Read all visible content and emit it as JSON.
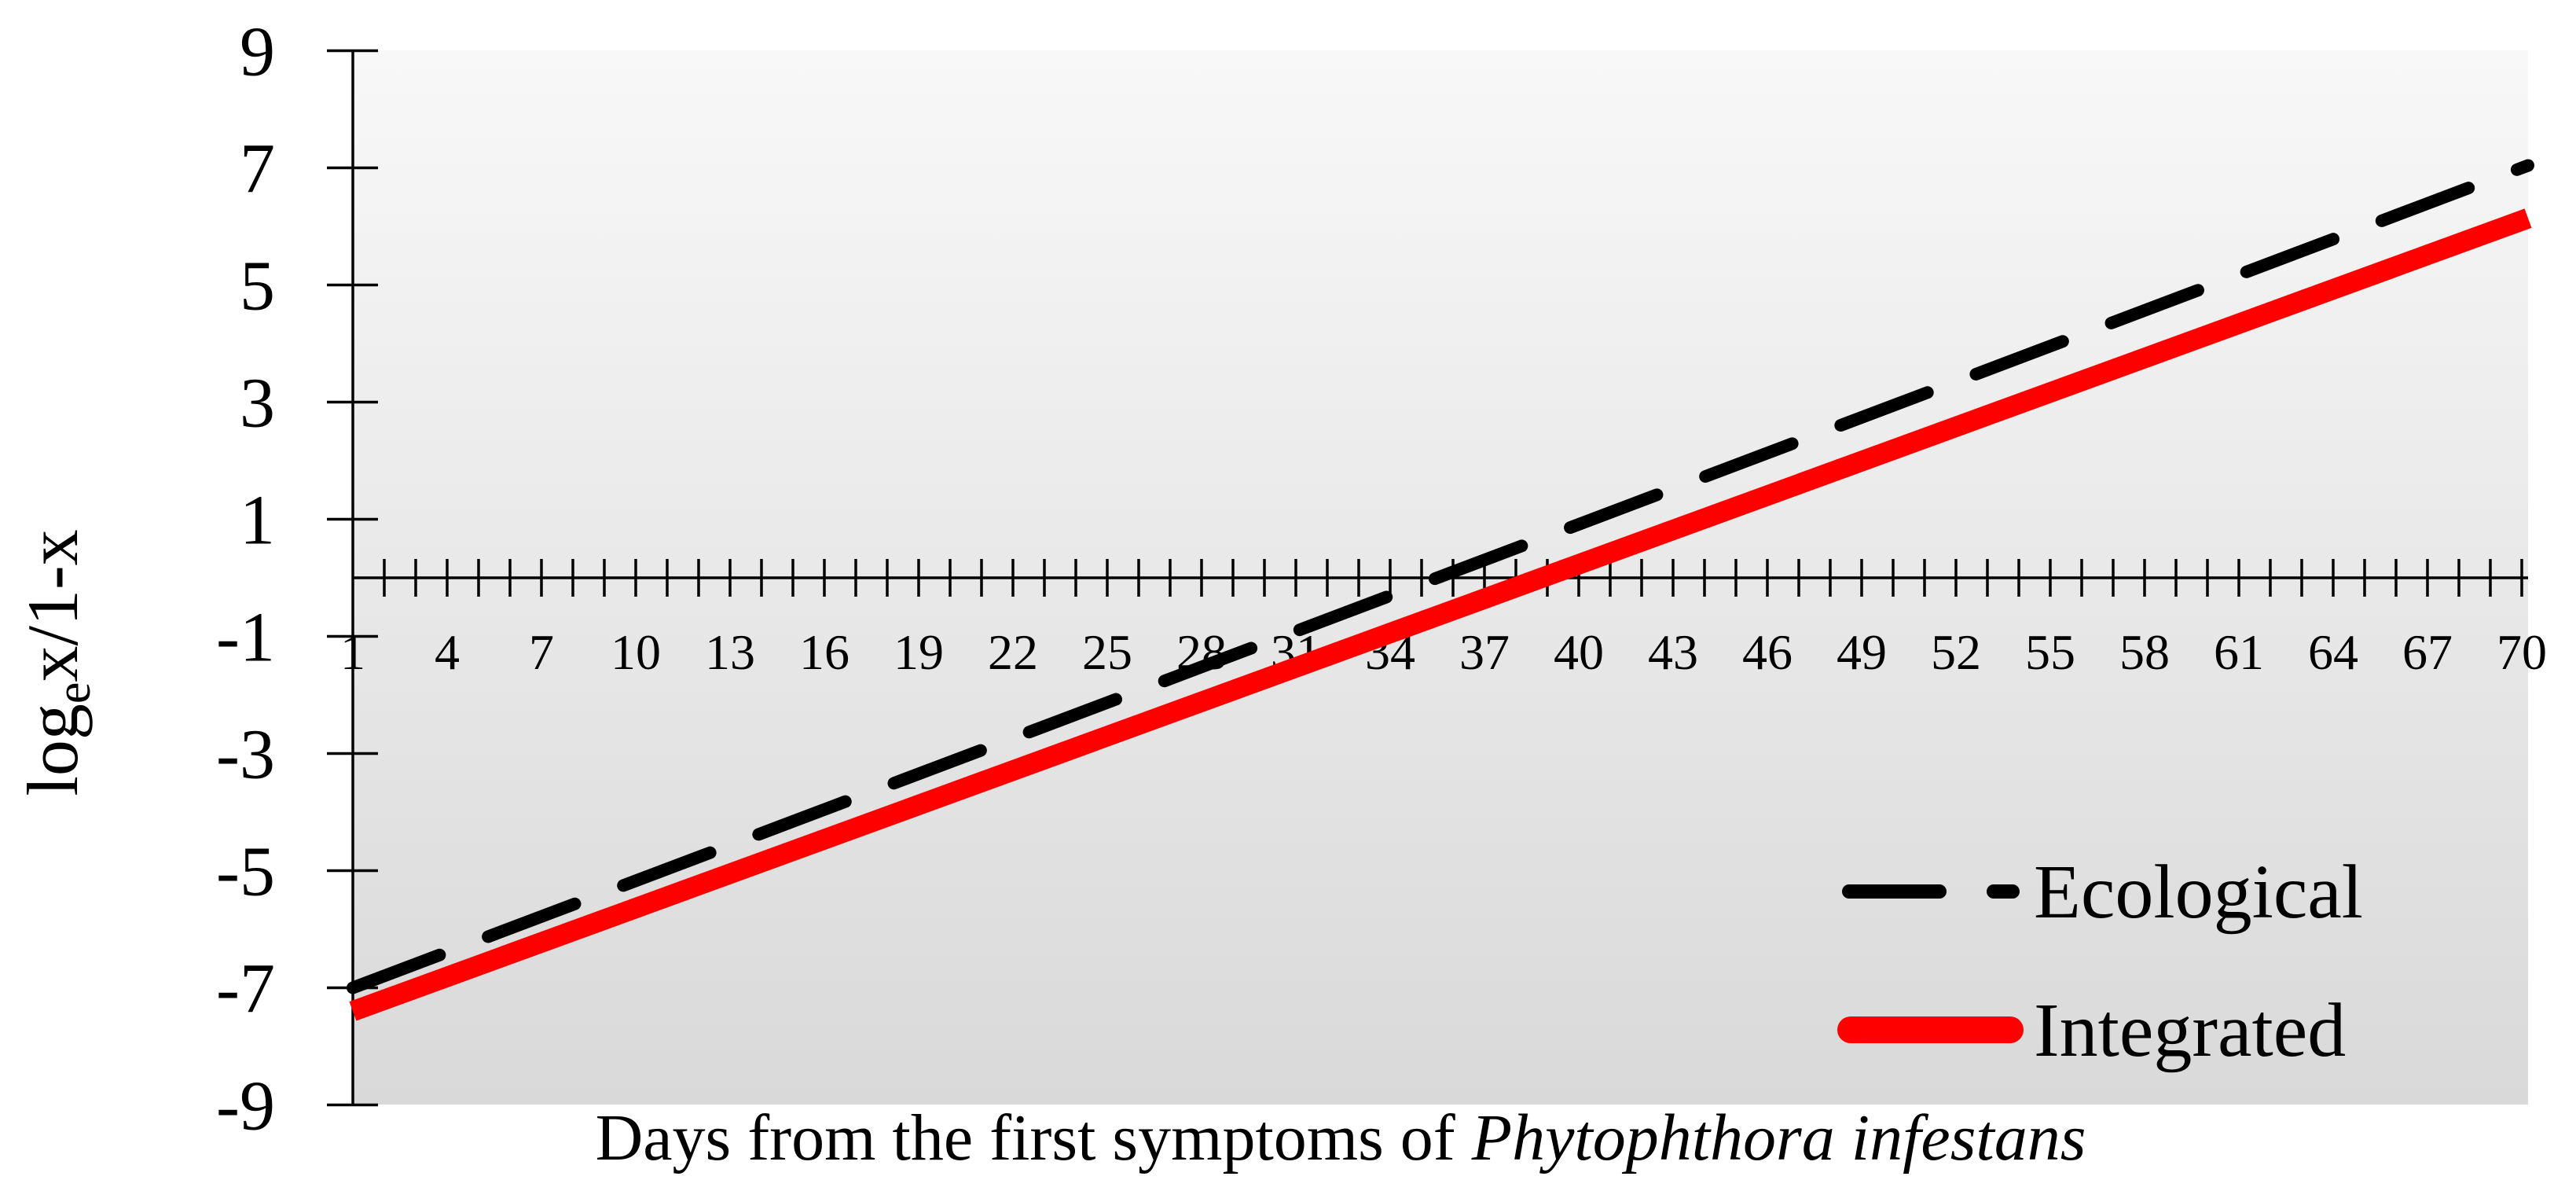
{
  "chart_data": {
    "type": "line",
    "title": "",
    "xlabel": "Days from the first symptoms of ",
    "xlabel_italic": "Phytophthora infestans",
    "ylabel_main": "log",
    "ylabel_sub": "e",
    "ylabel_rest": "x/1-x",
    "xlim": [
      1,
      70
    ],
    "ylim": [
      -9,
      9
    ],
    "x_tick_labels": [
      "1",
      "4",
      "7",
      "10",
      "13",
      "16",
      "19",
      "22",
      "25",
      "28",
      "31",
      "34",
      "37",
      "40",
      "43",
      "46",
      "49",
      "52",
      "55",
      "58",
      "61",
      "64",
      "67",
      "70"
    ],
    "x_minor_ticks_every": 1,
    "y_tick_labels": [
      "9",
      "7",
      "5",
      "3",
      "1",
      "-1",
      "-3",
      "-5",
      "-7",
      "-9"
    ],
    "y_ticks": [
      9,
      7,
      5,
      3,
      1,
      -1,
      -3,
      -5,
      -7,
      -9
    ],
    "grid": false,
    "x_axis_crosses_y_at": 0,
    "legend_position": "lower right (inside plot)",
    "x": [
      1,
      70
    ],
    "series": [
      {
        "name": "Ecological",
        "style": "dashed",
        "color": "#000000",
        "values": [
          -7.0,
          7.0
        ],
        "slope_per_day": 0.203,
        "zero_crossing_day": 35.5
      },
      {
        "name": "Integrated",
        "style": "solid",
        "color": "#ff0000",
        "values": [
          -7.4,
          6.1
        ],
        "slope_per_day": 0.196,
        "zero_crossing_day": 38.8
      }
    ],
    "background_gradient": [
      "#f8f8f8",
      "#d9d9d9"
    ]
  },
  "legend": {
    "items": [
      {
        "label": "Ecological",
        "color": "#000000",
        "style": "dashed"
      },
      {
        "label": "Integrated",
        "color": "#ff0000",
        "style": "solid"
      }
    ]
  }
}
